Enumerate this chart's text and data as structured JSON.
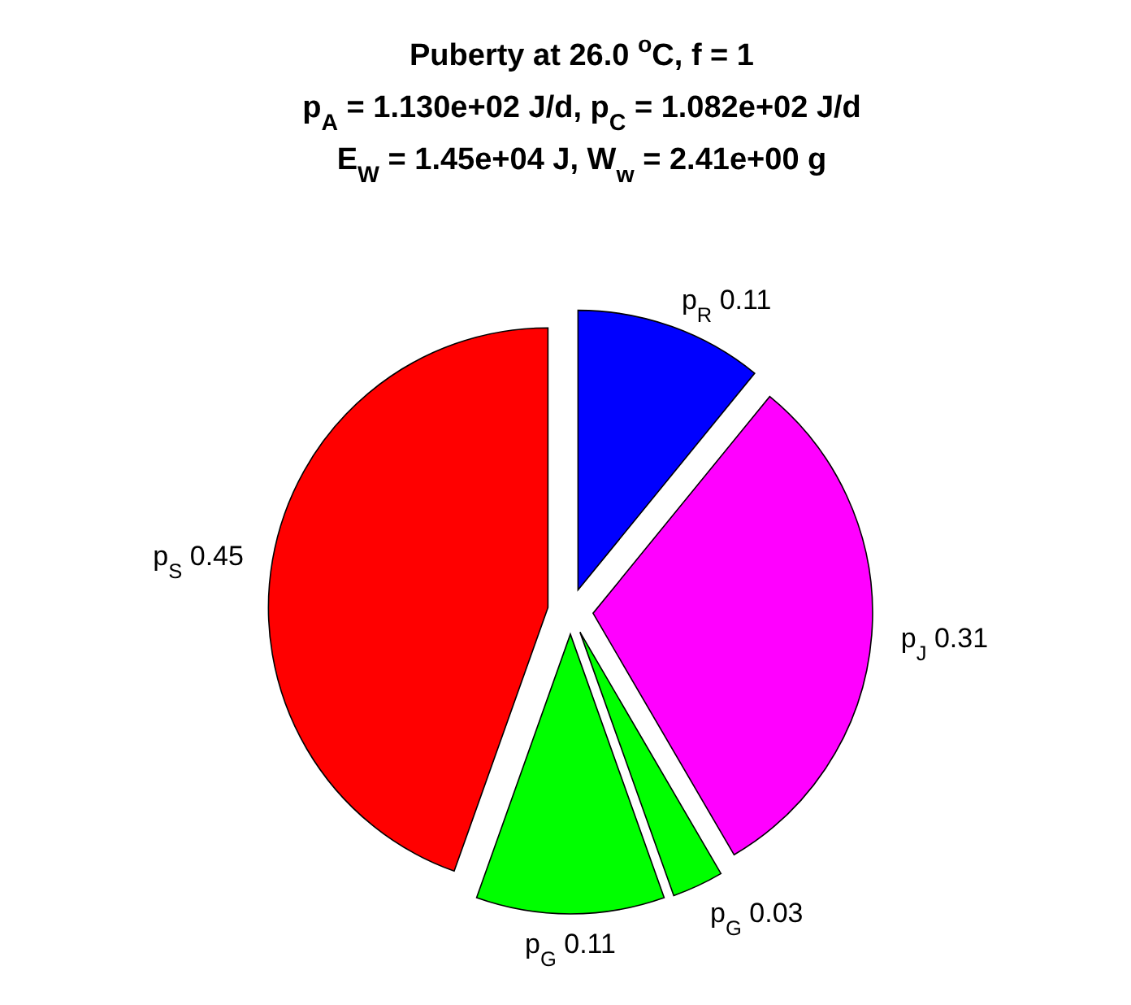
{
  "chart_data": {
    "type": "pie",
    "title": "Puberty at 26.0 $^{o}$C, f = 1\np$_{A}$ = 1.130e+02 J/d,  p$_{C}$ = 1.082e+02 J/d\nE$_{W}$ = 1.45e+04 J, W$_{w}$ = 2.41e+00 g",
    "categories": [
      "p$_{R}$",
      "p$_{J}$",
      "p$_{G}$",
      "p$_{G}$",
      "p$_{S}$"
    ],
    "values": [
      0.11,
      0.31,
      0.03,
      0.11,
      0.45
    ],
    "colors": [
      "#0000ff",
      "#ff00ff",
      "#00ff00",
      "#00ff00",
      "#ff0000"
    ],
    "data_labels": true
  }
}
